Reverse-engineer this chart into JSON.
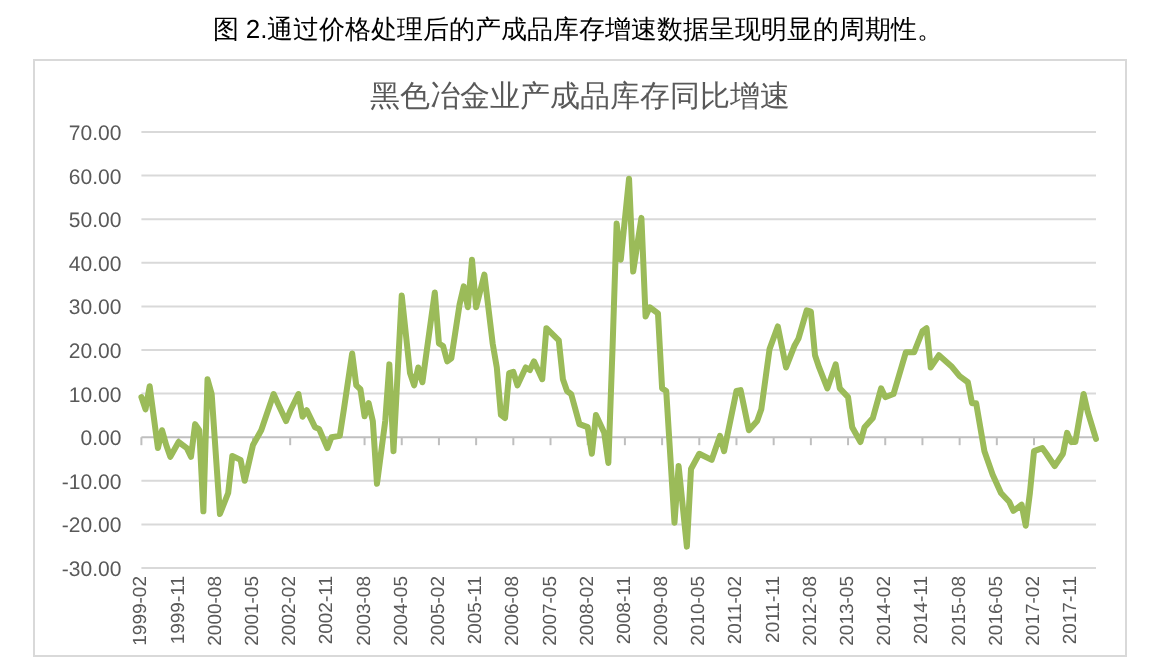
{
  "chart_data": {
    "type": "line",
    "title": "图 2.通过价格处理后的产成品库存增速数据呈现明显的周期性。",
    "subtitle": "黑色冶金业产成品库存同比增速",
    "x": [
      "1999-02",
      "1999-03",
      "1999-04",
      "1999-06",
      "1999-07",
      "1999-08",
      "1999-09",
      "1999-11",
      "2000-01",
      "2000-02",
      "2000-03",
      "2000-04",
      "2000-05",
      "2000-06",
      "2000-07",
      "2000-09",
      "2000-11",
      "2000-12",
      "2001-02",
      "2001-03",
      "2001-05",
      "2001-07",
      "2001-10",
      "2001-11",
      "2002-01",
      "2002-02",
      "2002-04",
      "2002-05",
      "2002-06",
      "2002-08",
      "2002-09",
      "2002-11",
      "2002-12",
      "2003-02",
      "2003-03",
      "2003-05",
      "2003-06",
      "2003-07",
      "2003-08",
      "2003-09",
      "2003-10",
      "2003-11",
      "2004-01",
      "2004-02",
      "2004-03",
      "2004-05",
      "2004-07",
      "2004-08",
      "2004-09",
      "2004-10",
      "2005-01",
      "2005-02",
      "2005-03",
      "2005-04",
      "2005-05",
      "2005-07",
      "2005-08",
      "2005-09",
      "2005-10",
      "2005-11",
      "2006-01",
      "2006-03",
      "2006-04",
      "2006-05",
      "2006-06",
      "2006-07",
      "2006-08",
      "2006-09",
      "2006-11",
      "2006-12",
      "2007-01",
      "2007-03",
      "2007-04",
      "2007-07",
      "2007-08",
      "2007-09",
      "2007-10",
      "2007-12",
      "2008-02",
      "2008-03",
      "2008-04",
      "2008-06",
      "2008-07",
      "2008-08",
      "2008-09",
      "2008-10",
      "2008-12",
      "2009-01",
      "2009-03",
      "2009-04",
      "2009-05",
      "2009-07",
      "2009-08",
      "2009-09",
      "2009-11",
      "2009-12",
      "2010-02",
      "2010-03",
      "2010-05",
      "2010-08",
      "2010-10",
      "2010-11",
      "2011-02",
      "2011-03",
      "2011-05",
      "2011-07",
      "2011-08",
      "2011-10",
      "2011-12",
      "2012-02",
      "2012-04",
      "2012-05",
      "2012-07",
      "2012-08",
      "2012-09",
      "2012-10",
      "2012-12",
      "2013-02",
      "2013-03",
      "2013-05",
      "2013-06",
      "2013-08",
      "2013-09",
      "2013-11",
      "2014-01",
      "2014-02",
      "2014-04",
      "2014-07",
      "2014-09",
      "2014-11",
      "2014-12",
      "2015-01",
      "2015-03",
      "2015-06",
      "2015-08",
      "2015-10",
      "2015-11",
      "2015-12",
      "2016-02",
      "2016-04",
      "2016-06",
      "2016-08",
      "2016-09",
      "2016-11",
      "2016-12",
      "2017-01",
      "2017-02",
      "2017-04",
      "2017-05",
      "2017-07",
      "2017-09",
      "2017-10",
      "2017-11",
      "2017-12",
      "2018-02",
      "2018-03",
      "2018-05"
    ],
    "series": [
      {
        "color": "#9bbb59",
        "values": [
          9.2,
          6.4,
          11.7,
          -2.5,
          1.6,
          -1.8,
          -4.5,
          -1.1,
          -2.5,
          -4.5,
          3,
          1.6,
          -17,
          13.3,
          9.9,
          -17.6,
          -12.8,
          -4.3,
          -5.2,
          -10,
          -1.8,
          1.6,
          9.9,
          7.8,
          3.7,
          6,
          9.9,
          4.7,
          6.2,
          2.3,
          1.9,
          -2.5,
          0,
          0.3,
          6.4,
          19.2,
          11.9,
          11,
          4.8,
          7.8,
          3.7,
          -10.7,
          3.7,
          16.7,
          -3.2,
          32.5,
          14.7,
          11.9,
          16,
          12.6,
          33.2,
          21.5,
          20.9,
          17.4,
          18.1,
          30.5,
          34.6,
          29.8,
          40.7,
          29.8,
          37.3,
          21.5,
          16,
          5.1,
          4.4,
          14.7,
          15,
          11.9,
          16,
          15.4,
          17.4,
          13.3,
          25,
          22.2,
          13.3,
          10.6,
          9.9,
          3,
          2.3,
          -3.8,
          5.1,
          1,
          -5.9,
          20.2,
          49,
          40.7,
          59.3,
          38,
          50.3,
          27.7,
          29.8,
          28.4,
          11.2,
          10.6,
          -19.6,
          -6.6,
          -25.1,
          -7.3,
          -3.8,
          -5.2,
          0.3,
          -3.2,
          10.6,
          10.8,
          1.6,
          3.7,
          6.4,
          20.2,
          25.4,
          16,
          20.9,
          22.6,
          29.1,
          28.8,
          18.8,
          16,
          11.2,
          16.7,
          11.2,
          9.2,
          2.3,
          -1.1,
          2.3,
          4.4,
          11.2,
          9.2,
          9.9,
          19.5,
          19.5,
          24.3,
          25,
          16,
          18.8,
          16.3,
          14,
          12.6,
          7.8,
          7.8,
          -3.2,
          -8.6,
          -12.8,
          -14.8,
          -16.9,
          -15.5,
          -20.3,
          -12.8,
          -3.2,
          -2.5,
          -3.8,
          -6.6,
          -3.8,
          1,
          -1.1,
          -1.1,
          9.9,
          5.8,
          -0.4
        ]
      }
    ],
    "xlim": [
      "1999-02",
      "2018-05"
    ],
    "xticks": [
      "1999-02",
      "1999-11",
      "2000-08",
      "2001-05",
      "2002-02",
      "2002-11",
      "2003-08",
      "2004-05",
      "2005-02",
      "2005-11",
      "2006-08",
      "2007-05",
      "2008-02",
      "2008-11",
      "2009-08",
      "2010-05",
      "2011-02",
      "2011-11",
      "2012-08",
      "2013-05",
      "2014-02",
      "2014-11",
      "2015-08",
      "2016-05",
      "2017-02",
      "2017-11"
    ],
    "ylim": [
      -30,
      70
    ],
    "yticks": [
      {
        "value": -30,
        "label": "-30.00"
      },
      {
        "value": -20,
        "label": "-20.00"
      },
      {
        "value": -10,
        "label": "-10.00"
      },
      {
        "value": 0,
        "label": "0.00"
      },
      {
        "value": 10,
        "label": "10.00"
      },
      {
        "value": 20,
        "label": "20.00"
      },
      {
        "value": 30,
        "label": "30.00"
      },
      {
        "value": 40,
        "label": "40.00"
      },
      {
        "value": 50,
        "label": "50.00"
      },
      {
        "value": 60,
        "label": "60.00"
      },
      {
        "value": 70,
        "label": "70.00"
      }
    ],
    "grid": "y",
    "marker": "none",
    "line_style": "solid"
  }
}
